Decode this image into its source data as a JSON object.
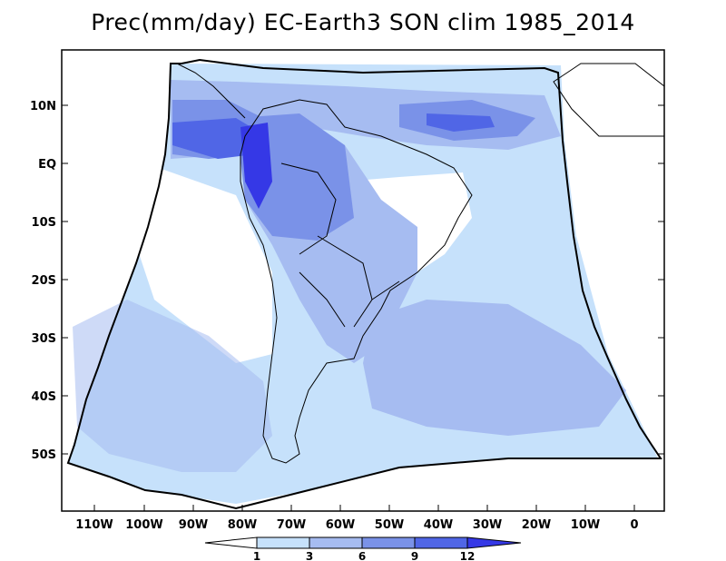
{
  "title": "Prec(mm/day) EC-Earth3 SON clim 1985_2014",
  "lat_labels": [
    "10N",
    "EQ",
    "10S",
    "20S",
    "30S",
    "40S",
    "50S"
  ],
  "lon_labels": [
    "110W",
    "100W",
    "90W",
    "80W",
    "70W",
    "60W",
    "50W",
    "40W",
    "30W",
    "20W",
    "10W",
    "0"
  ],
  "colorbar": {
    "levels": [
      "1",
      "3",
      "6",
      "9",
      "12"
    ],
    "colors": [
      "#ffffff",
      "#c6e1fb",
      "#a6bcf1",
      "#7a92e8",
      "#5066e6",
      "#3538e6"
    ]
  },
  "colors": {
    "frame": "#000000",
    "coast": "#000000"
  }
}
